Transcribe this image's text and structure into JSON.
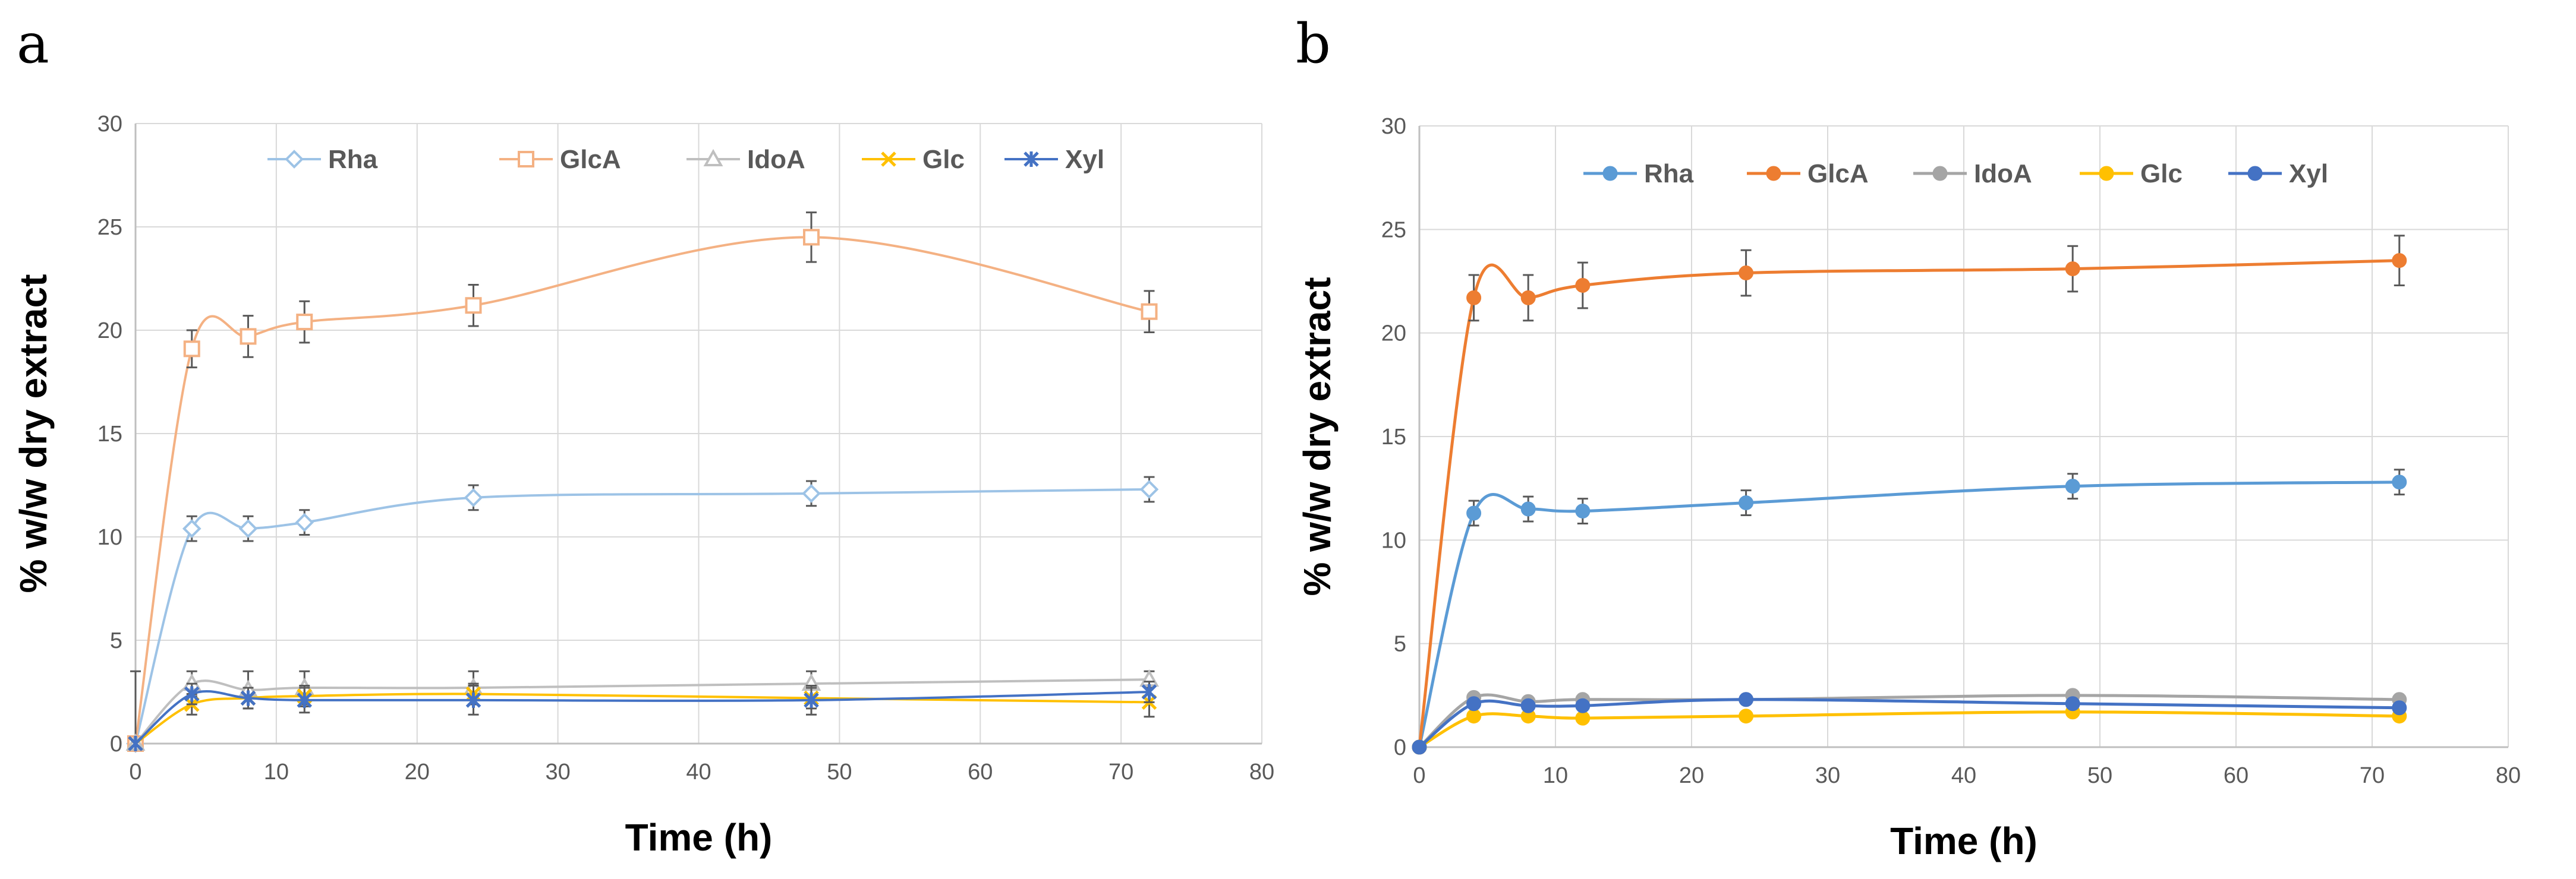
{
  "chart_data": [
    {
      "panel": "a",
      "type": "line",
      "xlabel": "Time (h)",
      "ylabel": "% w/w dry extract",
      "xlim": [
        0,
        80
      ],
      "ylim": [
        0,
        30
      ],
      "xticks": [
        0,
        10,
        20,
        30,
        40,
        50,
        60,
        70,
        80
      ],
      "yticks": [
        0,
        5,
        10,
        15,
        20,
        25,
        30
      ],
      "grid": true,
      "legend_position": "top",
      "x": [
        0,
        4,
        8,
        12,
        24,
        48,
        72
      ],
      "series": [
        {
          "name": "Rha",
          "color": "#9DC3E6",
          "marker": "diamond-open",
          "values": [
            0,
            10.4,
            10.4,
            10.7,
            11.9,
            12.1,
            12.3
          ],
          "errors": [
            0,
            0.6,
            0.6,
            0.6,
            0.6,
            0.6,
            0.6
          ]
        },
        {
          "name": "GlcA",
          "color": "#F4B183",
          "marker": "square-open",
          "values": [
            0,
            19.1,
            19.7,
            20.4,
            21.2,
            24.5,
            20.9
          ],
          "errors": [
            0,
            0.9,
            1.0,
            1.0,
            1.0,
            1.2,
            1.0
          ]
        },
        {
          "name": "IdoA",
          "color": "#BFBFBF",
          "marker": "triangle-open",
          "values": [
            0,
            2.9,
            2.6,
            2.7,
            2.7,
            2.9,
            3.1
          ],
          "errors": [
            3.5,
            0.6,
            0.9,
            0.8,
            0.8,
            0.6,
            0.4
          ]
        },
        {
          "name": "Glc",
          "color": "#FFC000",
          "marker": "x",
          "values": [
            0,
            1.9,
            2.2,
            2.3,
            2.4,
            2.2,
            2.0
          ],
          "errors": [
            0,
            0.5,
            0.5,
            0.5,
            0.5,
            0.5,
            0.7
          ]
        },
        {
          "name": "Xyl",
          "color": "#4472C4",
          "marker": "star",
          "values": [
            0,
            2.4,
            2.2,
            2.1,
            2.1,
            2.1,
            2.5
          ],
          "errors": [
            0,
            0.5,
            0.5,
            0.6,
            0.7,
            0.7,
            0.5
          ]
        }
      ]
    },
    {
      "panel": "b",
      "type": "line",
      "xlabel": "Time (h)",
      "ylabel": "% w/w dry extract",
      "xlim": [
        0,
        80
      ],
      "ylim": [
        0,
        30
      ],
      "xticks": [
        0,
        10,
        20,
        30,
        40,
        50,
        60,
        70,
        80
      ],
      "yticks": [
        0,
        5,
        10,
        15,
        20,
        25,
        30
      ],
      "grid": true,
      "legend_position": "top",
      "x": [
        0,
        4,
        8,
        12,
        24,
        48,
        72
      ],
      "series": [
        {
          "name": "Rha",
          "color": "#5B9BD5",
          "marker": "circle",
          "values": [
            0,
            11.3,
            11.5,
            11.4,
            11.8,
            12.6,
            12.8
          ],
          "errors": [
            0,
            0.6,
            0.6,
            0.6,
            0.6,
            0.6,
            0.6
          ]
        },
        {
          "name": "GlcA",
          "color": "#ED7D31",
          "marker": "circle",
          "values": [
            0,
            21.7,
            21.7,
            22.3,
            22.9,
            23.1,
            23.5
          ],
          "errors": [
            0,
            1.1,
            1.1,
            1.1,
            1.1,
            1.1,
            1.2
          ]
        },
        {
          "name": "IdoA",
          "color": "#A5A5A5",
          "marker": "circle",
          "values": [
            0,
            2.4,
            2.2,
            2.3,
            2.3,
            2.5,
            2.3
          ],
          "errors": [
            0,
            0,
            0,
            0,
            0,
            0,
            0
          ]
        },
        {
          "name": "Glc",
          "color": "#FFC000",
          "marker": "circle",
          "values": [
            0,
            1.5,
            1.5,
            1.4,
            1.5,
            1.7,
            1.5
          ],
          "errors": [
            0,
            0,
            0,
            0,
            0,
            0,
            0
          ]
        },
        {
          "name": "Xyl",
          "color": "#4472C4",
          "marker": "circle",
          "values": [
            0,
            2.1,
            2.0,
            2.0,
            2.3,
            2.1,
            1.9
          ],
          "errors": [
            0,
            0,
            0,
            0,
            0.2,
            0,
            0
          ]
        }
      ]
    }
  ]
}
